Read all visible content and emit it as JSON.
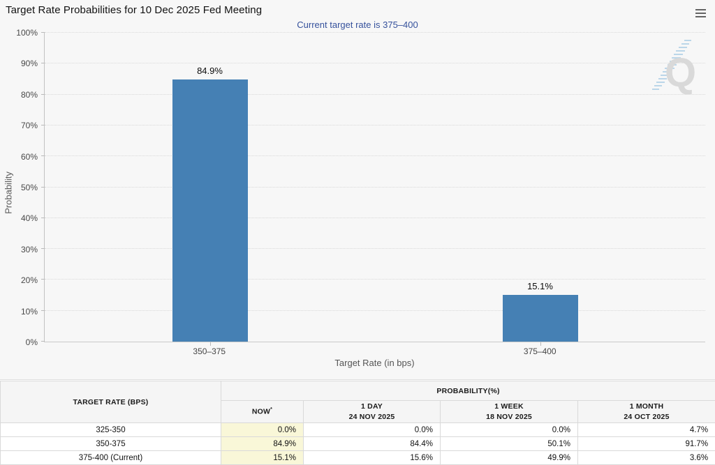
{
  "colors": {
    "bar": "#4580b4",
    "chart_background": "#f7f7f7",
    "subtitle_blue": "#35519c",
    "now_column_highlight": "#f9f7d8"
  },
  "header": {
    "title": "Target Rate Probabilities for 10 Dec 2025 Fed Meeting",
    "subtitle": "Current target rate is 375–400"
  },
  "watermark_letter": "Q",
  "chart_data": {
    "type": "bar",
    "title": "Target Rate Probabilities for 10 Dec 2025 Fed Meeting",
    "categories": [
      "350–375",
      "375–400"
    ],
    "values": [
      84.9,
      15.1
    ],
    "bar_labels": [
      "84.9%",
      "15.1%"
    ],
    "xlabel": "Target Rate (in bps)",
    "ylabel": "Probability",
    "ylim": [
      0,
      100
    ],
    "ytick_step": 10,
    "ytick_suffix": "%",
    "grid": "horizontal dotted",
    "legend": "none",
    "bar_color": "#4580b4"
  },
  "table": {
    "col1_header": "TARGET RATE (BPS)",
    "group_header": "PROBABILITY(%)",
    "sub_headers": [
      {
        "line1": "NOW",
        "sup": "*",
        "line2": ""
      },
      {
        "line1": "1 DAY",
        "line2": "24 NOV 2025"
      },
      {
        "line1": "1 WEEK",
        "line2": "18 NOV 2025"
      },
      {
        "line1": "1 MONTH",
        "line2": "24 OCT 2025"
      }
    ],
    "rows": [
      {
        "label": "325-350",
        "now": "0.0%",
        "day": "0.0%",
        "week": "0.0%",
        "month": "4.7%"
      },
      {
        "label": "350-375",
        "now": "84.9%",
        "day": "84.4%",
        "week": "50.1%",
        "month": "91.7%"
      },
      {
        "label": "375-400 (Current)",
        "now": "15.1%",
        "day": "15.6%",
        "week": "49.9%",
        "month": "3.6%"
      }
    ]
  }
}
